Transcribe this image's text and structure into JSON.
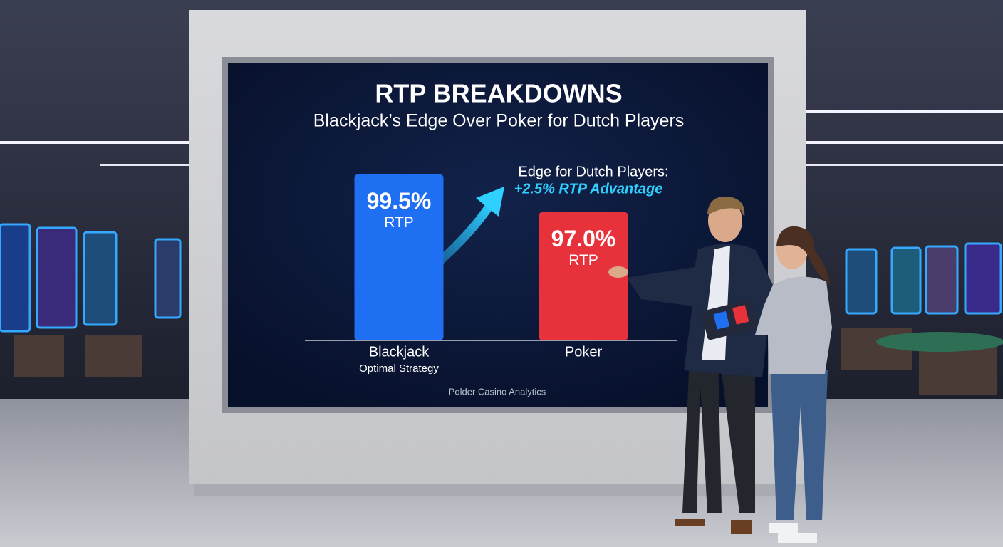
{
  "chart_data": {
    "type": "bar",
    "title": "RTP BREAKDOWNS",
    "subtitle": "Blackjack’s Edge Over Poker for Dutch Players",
    "categories": [
      "Blackjack",
      "Poker"
    ],
    "category_notes": [
      "Optimal Strategy",
      null
    ],
    "values": [
      99.5,
      97.0
    ],
    "value_labels": [
      "99.5%",
      "97.0%"
    ],
    "value_units": [
      "RTP",
      "RTP"
    ],
    "colors": [
      "#1f6ff2",
      "#e8323b"
    ],
    "ylim": [
      88.5,
      100
    ],
    "annotation": [
      "Edge for Dutch Players:",
      "+2.5% RTP Advantage"
    ],
    "source": "Polder Casino Analytics"
  }
}
